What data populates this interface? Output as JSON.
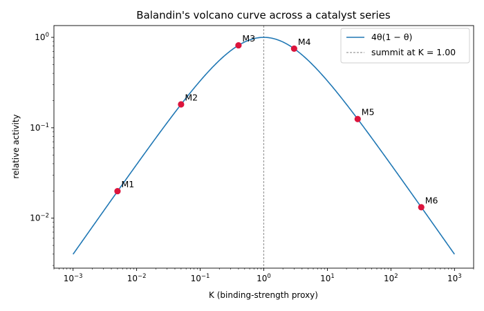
{
  "chart_data": {
    "type": "line",
    "title": "Balandin's volcano curve across a catalyst series",
    "xlabel": "K (binding-strength proxy)",
    "ylabel": "relative activity",
    "xscale": "log",
    "yscale": "log",
    "xlim": [
      0.0005,
      2000
    ],
    "ylim": [
      0.0028,
      1.35
    ],
    "x_ticks": [
      {
        "value": 0.001,
        "base": "10",
        "exp": "−3"
      },
      {
        "value": 0.01,
        "base": "10",
        "exp": "−2"
      },
      {
        "value": 0.1,
        "base": "10",
        "exp": "−1"
      },
      {
        "value": 1,
        "base": "10",
        "exp": "0"
      },
      {
        "value": 10,
        "base": "10",
        "exp": "1"
      },
      {
        "value": 100,
        "base": "10",
        "exp": "2"
      },
      {
        "value": 1000,
        "base": "10",
        "exp": "3"
      }
    ],
    "y_ticks": [
      {
        "value": 0.01,
        "base": "10",
        "exp": "−2"
      },
      {
        "value": 0.1,
        "base": "10",
        "exp": "−1"
      },
      {
        "value": 1,
        "base": "10",
        "exp": "0"
      }
    ],
    "series": [
      {
        "name": "4θ(1 − θ)",
        "function": "4K/(1+K)^2",
        "x_range": [
          0.001,
          1000
        ],
        "color": "#1f77b4"
      }
    ],
    "summit": {
      "x": 1.0,
      "label": "summit at K = 1.00",
      "color": "#808080"
    },
    "points": [
      {
        "label": "M1",
        "x": 0.005,
        "y": 0.0199
      },
      {
        "label": "M2",
        "x": 0.05,
        "y": 0.1814
      },
      {
        "label": "M3",
        "x": 0.4,
        "y": 0.8163
      },
      {
        "label": "M4",
        "x": 3.0,
        "y": 0.75
      },
      {
        "label": "M5",
        "x": 30.0,
        "y": 0.1249
      },
      {
        "label": "M6",
        "x": 300.0,
        "y": 0.0132
      }
    ],
    "point_color": "#dc143c",
    "grid": false,
    "legend_position": "upper-right"
  }
}
